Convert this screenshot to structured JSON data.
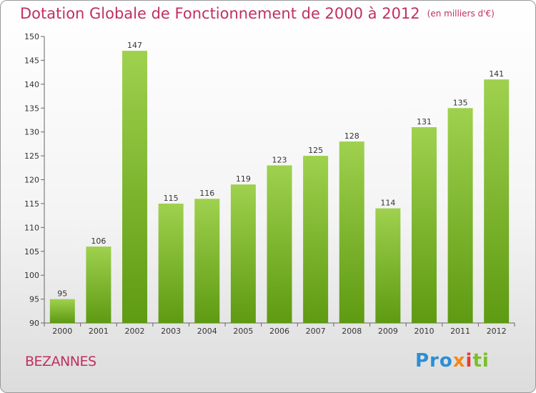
{
  "title": {
    "main": "Dotation Globale de Fonctionnement de 2000 à 2012",
    "unit": "(en milliers d'€)"
  },
  "commune": "BEZANNES",
  "logo": {
    "text": "Proxiti"
  },
  "colors": {
    "accent": "#c03060",
    "bar_light": "#9fd14e",
    "bar_dark": "#5e9a12"
  },
  "chart_data": {
    "type": "bar",
    "categories": [
      "2000",
      "2001",
      "2002",
      "2003",
      "2004",
      "2005",
      "2006",
      "2007",
      "2008",
      "2009",
      "2010",
      "2011",
      "2012"
    ],
    "values": [
      95,
      106,
      147,
      115,
      116,
      119,
      123,
      125,
      128,
      114,
      131,
      135,
      141
    ],
    "ylim": [
      90,
      150
    ],
    "yticks": [
      90,
      95,
      100,
      105,
      110,
      115,
      120,
      125,
      130,
      135,
      140,
      145,
      150
    ],
    "grid": false,
    "legend": "none"
  }
}
